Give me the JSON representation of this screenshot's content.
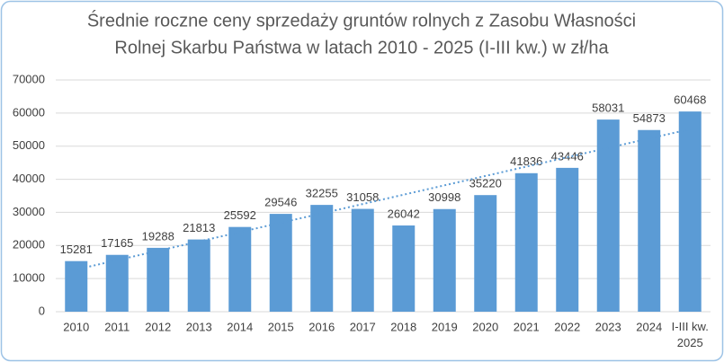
{
  "chart_data": {
    "type": "bar",
    "title": [
      "Średnie roczne ceny sprzedaży gruntów rolnych z Zasobu Własności",
      "Rolnej Skarbu Państwa w latach 2010 - 2025 (I-III kw.) w zł/ha"
    ],
    "categories": [
      "2010",
      "2011",
      "2012",
      "2013",
      "2014",
      "2015",
      "2016",
      "2017",
      "2018",
      "2019",
      "2020",
      "2021",
      "2022",
      "2023",
      "2024",
      "I-III kw. 2025"
    ],
    "values": [
      15281,
      17165,
      19288,
      21813,
      25592,
      29546,
      32255,
      31058,
      26042,
      30998,
      35220,
      41836,
      43446,
      58031,
      54873,
      60468
    ],
    "color": "#5b9bd5",
    "ylim": [
      0,
      70000
    ],
    "yticks": [
      0,
      10000,
      20000,
      30000,
      40000,
      50000,
      60000,
      70000
    ],
    "grid": true,
    "trendline": true,
    "data_labels": true
  }
}
